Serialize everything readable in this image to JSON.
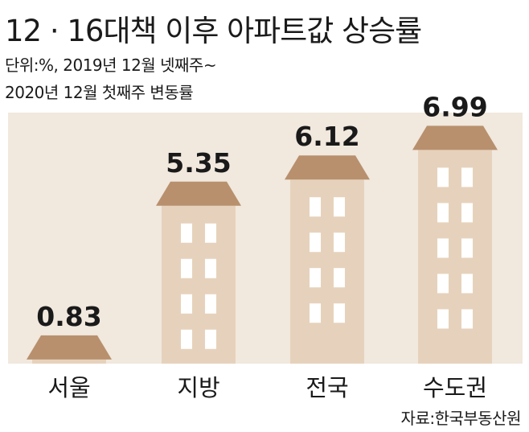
{
  "chart_data": {
    "type": "bar",
    "title": "12 · 16대책 이후 아파트값 상승률",
    "unit_line1": "단위:%, 2019년 12월 넷째주~",
    "unit_line2": "2020년 12월 첫째주 변동률",
    "categories": [
      "서울",
      "지방",
      "전국",
      "수도권"
    ],
    "values": [
      0.83,
      5.35,
      6.12,
      6.99
    ],
    "value_labels": [
      "0.83",
      "5.35",
      "6.12",
      "6.99"
    ],
    "source": "자료:한국부동산원",
    "colors": {
      "background": "#ffffff",
      "plot_background": "#f1e8de",
      "building_body": "#e6d2bc",
      "building_roof": "#b8906d",
      "window": "#ffffff",
      "text": "#1a1a1a"
    }
  }
}
